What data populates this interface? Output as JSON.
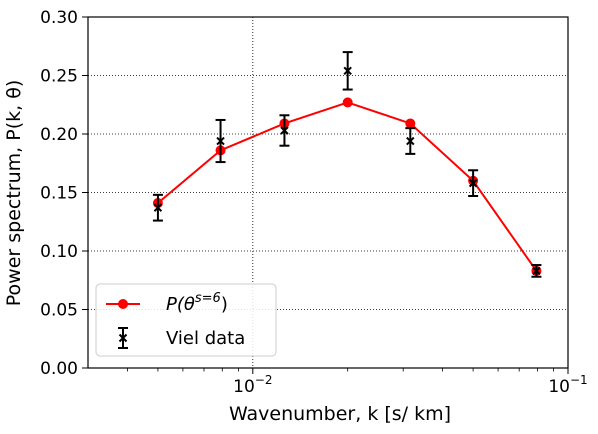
{
  "chart_data": {
    "type": "line",
    "xscale": "log",
    "xlim": [
      0.003,
      0.1
    ],
    "ylim": [
      0.0,
      0.3
    ],
    "xlabel": "Wavenumber, k [s/ km]",
    "ylabel": "Power spectrum, P(k, θ)",
    "x_ticks": [
      {
        "value": 0.01,
        "base": "10",
        "exp": "−2"
      },
      {
        "value": 0.1,
        "base": "10",
        "exp": "−1"
      }
    ],
    "y_ticks": [
      {
        "value": 0.0,
        "label": "0.00"
      },
      {
        "value": 0.05,
        "label": "0.05"
      },
      {
        "value": 0.1,
        "label": "0.10"
      },
      {
        "value": 0.15,
        "label": "0.15"
      },
      {
        "value": 0.2,
        "label": "0.20"
      },
      {
        "value": 0.25,
        "label": "0.25"
      },
      {
        "value": 0.3,
        "label": "0.30"
      }
    ],
    "grid": true,
    "legend_position": "lower-left",
    "series": [
      {
        "name": "P(θ^{s=6})",
        "kind": "line-marker",
        "color": "#ff0000",
        "x": [
          0.005,
          0.0079,
          0.0126,
          0.02,
          0.0316,
          0.05,
          0.0794
        ],
        "y": [
          0.141,
          0.186,
          0.209,
          0.227,
          0.209,
          0.16,
          0.083
        ]
      },
      {
        "name": "Viel data",
        "kind": "errorbar",
        "color": "#000000",
        "x": [
          0.005,
          0.0079,
          0.0126,
          0.02,
          0.0316,
          0.05,
          0.0794
        ],
        "y": [
          0.137,
          0.194,
          0.203,
          0.254,
          0.194,
          0.158,
          0.083
        ],
        "yerr": [
          0.011,
          0.018,
          0.013,
          0.016,
          0.011,
          0.011,
          0.005
        ]
      }
    ]
  }
}
